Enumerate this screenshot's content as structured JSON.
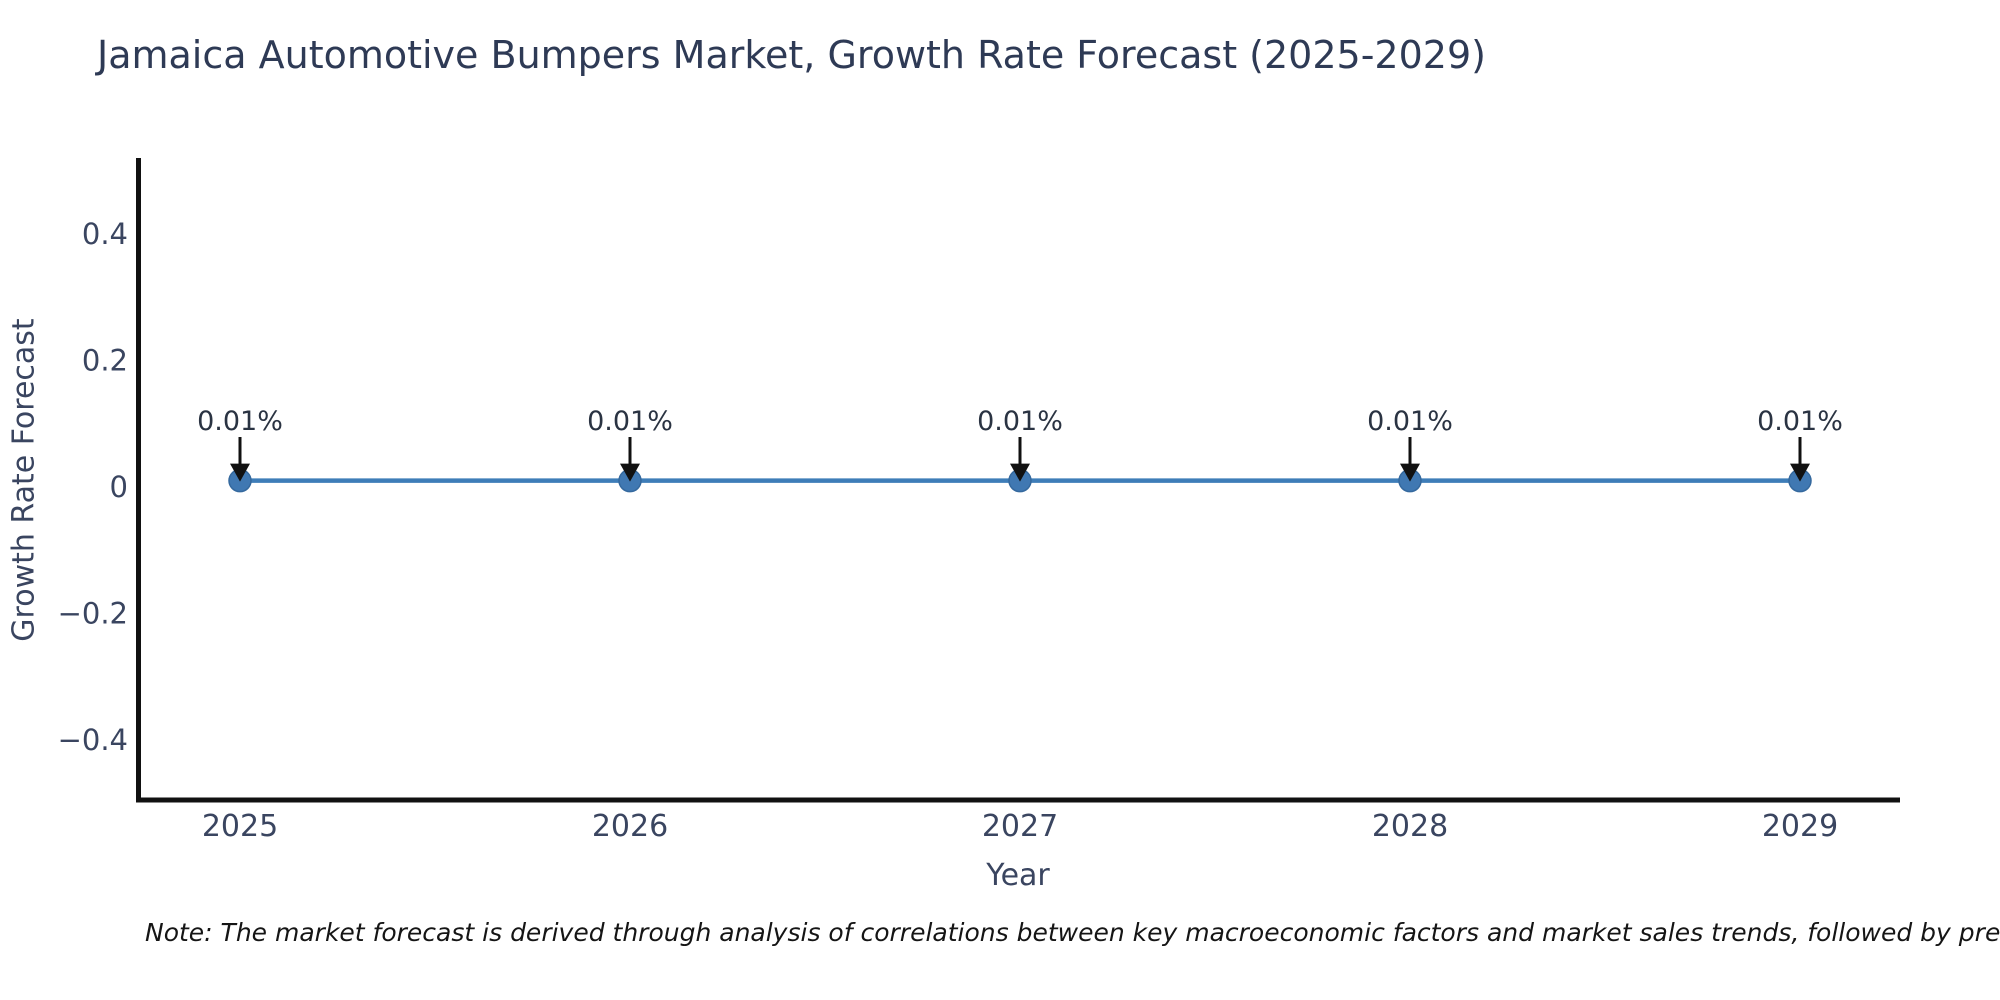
{
  "title": "Jamaica Automotive Bumpers Market, Growth Rate Forecast (2025-2029)",
  "note": "Note: The market forecast is derived through analysis of correlations between key macroeconomic factors and market sales trends, followed by predictive modeling to project future sa",
  "chart_data": {
    "type": "line",
    "x": [
      2025,
      2026,
      2027,
      2028,
      2029
    ],
    "xtick_labels": [
      "2025",
      "2026",
      "2027",
      "2028",
      "2029"
    ],
    "series": [
      {
        "name": "Growth Rate Forecast",
        "values": [
          0.01,
          0.01,
          0.01,
          0.01,
          0.01
        ]
      }
    ],
    "point_labels": [
      "0.01%",
      "0.01%",
      "0.01%",
      "0.01%",
      "0.01%"
    ],
    "title": "Jamaica Automotive Bumpers Market, Growth Rate Forecast (2025-2029)",
    "xlabel": "Year",
    "ylabel": "Growth Rate Forecast",
    "yticks": [
      0.4,
      0.2,
      0,
      -0.2,
      -0.4
    ],
    "ytick_labels": [
      "0.4",
      "0.2",
      "0",
      "−0.2",
      "−0.4"
    ],
    "ylim": [
      -0.5,
      0.5
    ],
    "grid": false,
    "legend": "none",
    "line_color": "#3e7db8",
    "marker_color": "#4078b2",
    "marker_edge_color": "#35699e",
    "annotation_color": "#2a3342",
    "arrow_color": "#111111",
    "spine_color": "#111111",
    "tick_label_color": "#3a4560"
  }
}
